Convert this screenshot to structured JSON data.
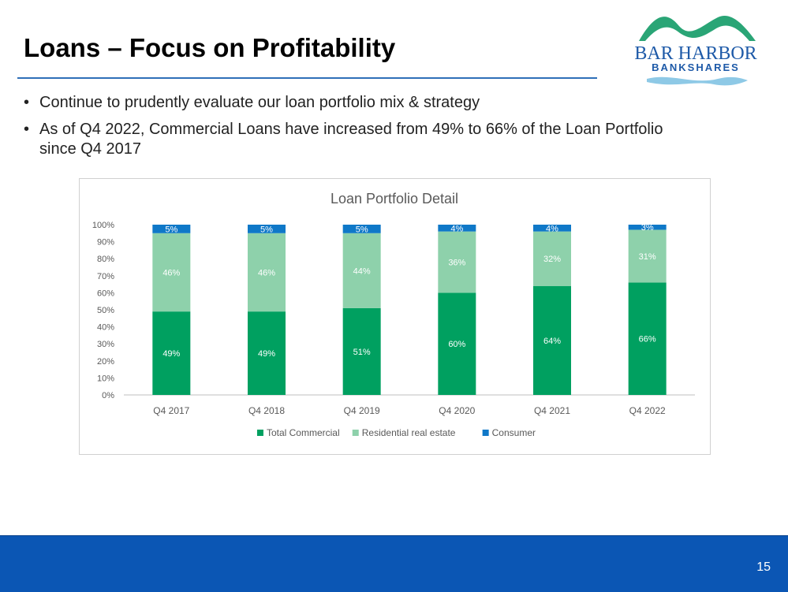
{
  "slide": {
    "title": "Loans – Focus on Profitability",
    "bullets": [
      "Continue to prudently evaluate our loan portfolio mix & strategy",
      "As of Q4 2022, Commercial Loans have increased from 49% to 66% of the Loan Portfolio since Q4 2017"
    ],
    "page_number": "15"
  },
  "logo": {
    "line1": "BAR HARBOR",
    "line2": "BANKSHARES"
  },
  "colors": {
    "title_rule": "#2f6fb8",
    "footer": "#0b56b4",
    "commercial": "#00a060",
    "residential": "#8ed1ab",
    "consumer": "#0f78c8",
    "logo_text": "#1e5aa8",
    "logo_mountain": "#2aa576"
  },
  "chart_data": {
    "type": "bar",
    "stacked": true,
    "title": "Loan Portfolio Detail",
    "categories": [
      "Q4 2017",
      "Q4 2018",
      "Q4 2019",
      "Q4 2020",
      "Q4 2021",
      "Q4 2022"
    ],
    "series": [
      {
        "name": "Total Commercial",
        "values": [
          49,
          49,
          51,
          60,
          64,
          66
        ],
        "labels": [
          "49%",
          "49%",
          "51%",
          "60%",
          "64%",
          "66%"
        ]
      },
      {
        "name": "Residential real estate",
        "values": [
          46,
          46,
          44,
          36,
          32,
          31
        ],
        "labels": [
          "46%",
          "46%",
          "44%",
          "36%",
          "32%",
          "31%"
        ]
      },
      {
        "name": "Consumer",
        "values": [
          5,
          5,
          5,
          4,
          4,
          3
        ],
        "labels": [
          "5%",
          "5%",
          "5%",
          "4%",
          "4%",
          "3%"
        ]
      }
    ],
    "ylim": [
      0,
      100
    ],
    "yticks": [
      "0%",
      "10%",
      "20%",
      "30%",
      "40%",
      "50%",
      "60%",
      "70%",
      "80%",
      "90%",
      "100%"
    ],
    "grid": false,
    "legend_position": "bottom"
  }
}
